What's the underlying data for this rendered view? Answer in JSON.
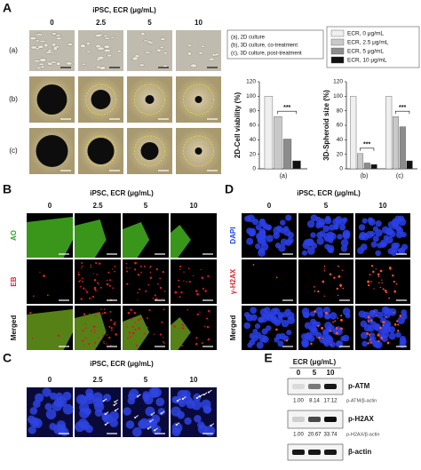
{
  "panel_a": {
    "label": "A",
    "header": "iPSC, ECR (μg/mL)",
    "columns": [
      "0",
      "2.5",
      "5",
      "10"
    ],
    "rows": [
      "(a)",
      "(b)",
      "(c)"
    ],
    "key": [
      "(a), 2D culture",
      "(b), 3D culture, co-treatment",
      "(c), 3D culture, post-treatment"
    ]
  },
  "chart_data": [
    {
      "type": "bar",
      "y_label": "2D-Cell viability (%)",
      "categories": [
        "(a)"
      ],
      "ylim": [
        0,
        120
      ],
      "yticks": [
        0,
        20,
        40,
        60,
        80,
        100,
        120
      ],
      "significance": [
        "***"
      ],
      "series": [
        {
          "name": "ECR, 0 μg/mL",
          "color": "#efefef",
          "values": [
            100
          ]
        },
        {
          "name": "ECR, 2.5 μg/mL",
          "color": "#c9c9c9",
          "values": [
            72
          ]
        },
        {
          "name": "ECR, 5 μg/mL",
          "color": "#8c8c8c",
          "values": [
            41
          ]
        },
        {
          "name": "ECR, 10 μg/mL",
          "color": "#111111",
          "values": [
            11
          ]
        }
      ]
    },
    {
      "type": "bar",
      "y_label": "3D-Spheroid size (%)",
      "categories": [
        "(b)",
        "(c)"
      ],
      "ylim": [
        0,
        120
      ],
      "yticks": [
        0,
        20,
        40,
        60,
        80,
        100,
        120
      ],
      "significance": [
        "***",
        "***"
      ],
      "series": [
        {
          "color": "#efefef",
          "values": [
            100,
            100
          ]
        },
        {
          "color": "#c9c9c9",
          "values": [
            21,
            72
          ]
        },
        {
          "color": "#8c8c8c",
          "values": [
            8,
            58
          ]
        },
        {
          "color": "#111111",
          "values": [
            6,
            11
          ]
        }
      ]
    }
  ],
  "panel_b": {
    "label": "B",
    "header": "iPSC, ECR (μg/mL)",
    "columns": [
      "0",
      "2.5",
      "5",
      "10"
    ],
    "rows": [
      "AO",
      "EB",
      "Merged"
    ]
  },
  "panel_c": {
    "label": "C",
    "header": "iPSC, ECR (μg/mL)",
    "columns": [
      "0",
      "2.5",
      "5",
      "10"
    ]
  },
  "panel_d": {
    "label": "D",
    "header": "iPSC, ECR (μg/mL)",
    "columns": [
      "0",
      "5",
      "10"
    ],
    "rows": [
      "DAPI",
      "γ-H2AX",
      "Merged"
    ]
  },
  "panel_e": {
    "label": "E",
    "header": "ECR (μg/mL)",
    "columns": [
      "0",
      "5",
      "10"
    ],
    "blots": [
      {
        "name": "p-ATM",
        "ratio_label": "p-ATM/β-actin",
        "ratios": [
          "1.00",
          "8.14",
          "17.12"
        ]
      },
      {
        "name": "p-H2AX",
        "ratio_label": "p-H2AX/β-actin",
        "ratios": [
          "1.00",
          "20.67",
          "33.74"
        ]
      },
      {
        "name": "β-actin"
      }
    ]
  }
}
